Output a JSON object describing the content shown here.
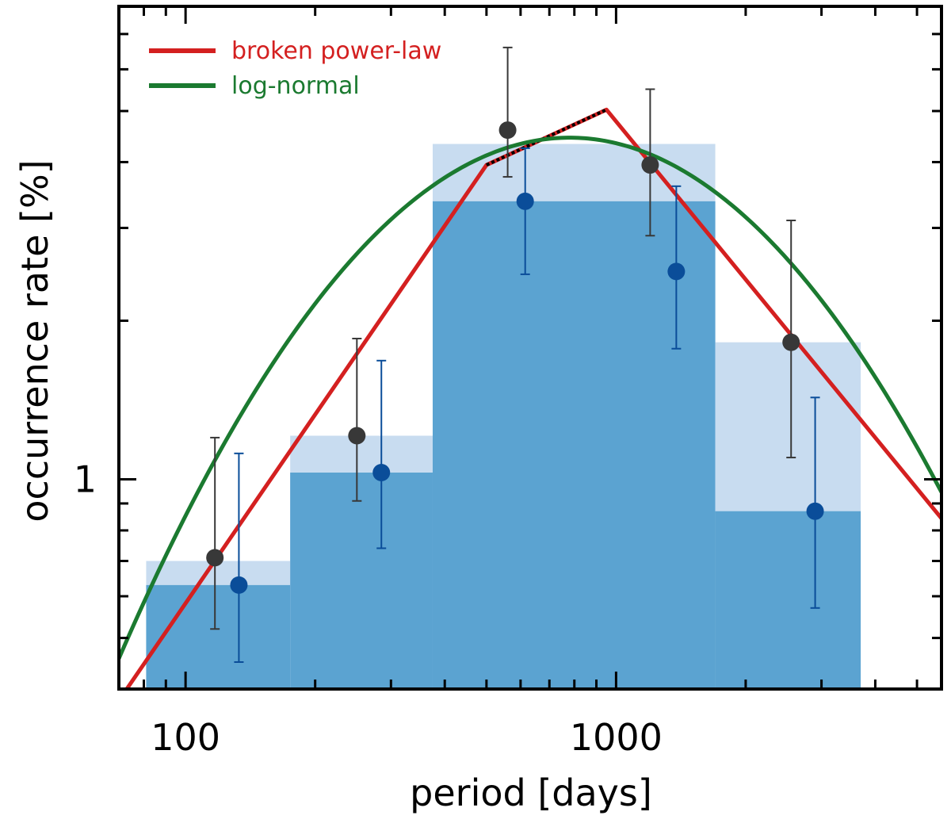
{
  "chart_data": {
    "type": "bar",
    "xlabel": "period [days]",
    "ylabel": "occurrence rate [%]",
    "x_scale": "log",
    "y_scale": "log",
    "xlim": [
      70,
      5700
    ],
    "ylim": [
      0.4,
      7.9
    ],
    "x_ticks": [
      {
        "value": 100,
        "label": "100"
      },
      {
        "value": 1000,
        "label": "1000"
      }
    ],
    "y_ticks": [
      {
        "value": 1,
        "label": "1"
      }
    ],
    "bins": [
      {
        "x_lo": 81,
        "x_hi": 175,
        "total": 0.7,
        "dark": 0.63
      },
      {
        "x_lo": 175,
        "x_hi": 375,
        "total": 1.21,
        "dark": 1.03
      },
      {
        "x_lo": 375,
        "x_hi": 1700,
        "total": 4.33,
        "dark": 3.37
      },
      {
        "x_lo": 1700,
        "x_hi": 3700,
        "total": 1.82,
        "dark": 0.87
      }
    ],
    "series": [
      {
        "name": "broken power-law",
        "type": "line",
        "color": "#d42020",
        "points": [
          [
            73,
            0.4
          ],
          [
            500,
            3.95
          ],
          [
            950,
            5.03
          ],
          [
            5700,
            0.843
          ]
        ]
      },
      {
        "name": "",
        "type": "line",
        "dashed": true,
        "color": "#000000",
        "points": [
          [
            500,
            3.95
          ],
          [
            950,
            5.03
          ]
        ]
      },
      {
        "name": "log-normal",
        "type": "lognormal",
        "color": "#1b7a30",
        "peak_x": 780,
        "peak_y": 4.45,
        "sigma_ln": 1.13
      }
    ],
    "points_dark": [
      {
        "x": 117,
        "y": 0.71,
        "y_lo": 0.52,
        "y_hi": 1.2
      },
      {
        "x": 250,
        "y": 1.21,
        "y_lo": 0.91,
        "y_hi": 1.85
      },
      {
        "x": 560,
        "y": 4.6,
        "y_lo": 3.75,
        "y_hi": 6.6
      },
      {
        "x": 1200,
        "y": 3.95,
        "y_lo": 2.9,
        "y_hi": 5.5
      },
      {
        "x": 2550,
        "y": 1.82,
        "y_lo": 1.1,
        "y_hi": 3.1
      }
    ],
    "points_blue": [
      {
        "x": 133,
        "y": 0.63,
        "y_lo": 0.45,
        "y_hi": 1.12
      },
      {
        "x": 285,
        "y": 1.03,
        "y_lo": 0.74,
        "y_hi": 1.68
      },
      {
        "x": 615,
        "y": 3.37,
        "y_lo": 2.45,
        "y_hi": 4.25
      },
      {
        "x": 1380,
        "y": 2.48,
        "y_lo": 1.77,
        "y_hi": 3.6
      },
      {
        "x": 2900,
        "y": 0.87,
        "y_lo": 0.57,
        "y_hi": 1.43
      }
    ],
    "legend": {
      "position": "top-left",
      "entries": [
        {
          "label": "broken power-law",
          "color": "#d42020"
        },
        {
          "label": "log-normal",
          "color": "#1b7a30"
        }
      ]
    },
    "colors": {
      "bar_light": "#c8dcf0",
      "bar_dark": "#5ba3d1",
      "point_dark": "#383838",
      "point_blue": "#0a4d99"
    }
  }
}
